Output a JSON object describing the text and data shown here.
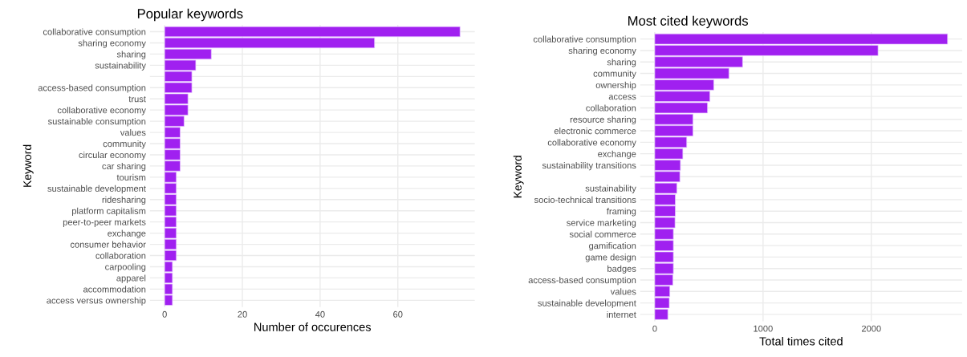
{
  "chart_data": [
    {
      "type": "bar",
      "orientation": "horizontal",
      "title": "Popular keywords",
      "xlabel": "Number of occurences",
      "ylabel": "Keyword",
      "categories": [
        "collaborative consumption",
        "sharing economy",
        "sharing",
        "sustainability",
        null,
        "access-based consumption",
        "trust",
        "collaborative economy",
        "sustainable consumption",
        "values",
        "community",
        "circular economy",
        "car sharing",
        "tourism",
        "sustainable development",
        "ridesharing",
        "platform capitalism",
        "peer-to-peer markets",
        "exchange",
        "consumer behavior",
        "collaboration",
        "carpooling",
        "apparel",
        "accommodation",
        "access versus ownership"
      ],
      "values": [
        76,
        54,
        12,
        8,
        7,
        7,
        6,
        6,
        5,
        4,
        4,
        4,
        4,
        3,
        3,
        3,
        3,
        3,
        3,
        3,
        3,
        2,
        2,
        2,
        2
      ],
      "color": "#a020f0",
      "xlim": [
        -3.8,
        79.8
      ],
      "xticks": [
        0,
        20,
        40,
        60
      ],
      "grid": true
    },
    {
      "type": "bar",
      "orientation": "horizontal",
      "title": "Most cited keywords",
      "xlabel": "Total times cited",
      "ylabel": "Keyword",
      "categories": [
        "collaborative consumption",
        "sharing economy",
        "sharing",
        "community",
        "ownership",
        "access",
        "collaboration",
        "resource sharing",
        "electronic commerce",
        "collaborative economy",
        "exchange",
        "sustainability transitions",
        null,
        "sustainability",
        "socio-technical transitions",
        "framing",
        "service marketing",
        "social commerce",
        "gamification",
        "game design",
        "badges",
        "access-based consumption",
        "values",
        "sustainable development",
        "internet"
      ],
      "values": [
        2704,
        2062,
        811,
        685,
        545,
        509,
        487,
        353,
        353,
        295,
        259,
        237,
        232,
        204,
        190,
        190,
        187,
        172,
        172,
        172,
        172,
        167,
        139,
        134,
        121
      ],
      "color": "#a020f0",
      "xlim": [
        -135,
        2839
      ],
      "xticks": [
        0,
        1000,
        2000
      ],
      "grid": true
    }
  ]
}
